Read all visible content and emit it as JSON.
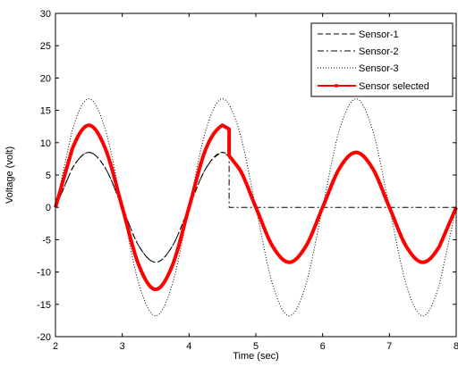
{
  "chart_data": {
    "type": "line",
    "title": "",
    "xlabel": "Time (sec)",
    "ylabel": "Voltage (volt)",
    "xlim": [
      2,
      8
    ],
    "ylim": [
      -20,
      30
    ],
    "xticks": [
      2,
      3,
      4,
      5,
      6,
      7,
      8
    ],
    "yticks": [
      -20,
      -15,
      -10,
      -5,
      0,
      5,
      10,
      15,
      20,
      25,
      30
    ],
    "grid": false,
    "legend_position": "top-right",
    "series": [
      {
        "name": "Sensor-1",
        "style": "dashed",
        "color": "#000000",
        "x": [
          2.0,
          2.25,
          2.5,
          2.75,
          3.0,
          3.25,
          3.5,
          3.75,
          4.0,
          4.25,
          4.5,
          4.75,
          5.0,
          5.25,
          5.5,
          5.75,
          6.0,
          6.25,
          6.5,
          6.75,
          7.0,
          7.25,
          7.5,
          7.75,
          8.0
        ],
        "y": [
          0,
          6.0,
          8.5,
          6.0,
          0,
          -6.0,
          -8.5,
          -6.0,
          0,
          6.0,
          8.5,
          6.0,
          0,
          -6.0,
          -8.5,
          -6.0,
          0,
          6.0,
          8.5,
          6.0,
          0,
          -6.0,
          -8.5,
          -6.0,
          0
        ]
      },
      {
        "name": "Sensor-2",
        "style": "dashdot",
        "color": "#000000",
        "x": [
          2.0,
          2.25,
          2.5,
          2.75,
          3.0,
          3.25,
          3.5,
          3.75,
          4.0,
          4.25,
          4.5,
          4.6,
          4.6,
          5.0,
          6.0,
          7.0,
          8.0
        ],
        "y": [
          0,
          6.0,
          8.5,
          6.0,
          0,
          -6.0,
          -8.5,
          -6.0,
          0,
          6.0,
          8.5,
          7.9,
          0,
          0,
          0,
          0,
          0
        ]
      },
      {
        "name": "Sensor-3",
        "style": "dotted",
        "color": "#000000",
        "x": [
          2.0,
          2.25,
          2.5,
          2.75,
          3.0,
          3.25,
          3.5,
          3.75,
          4.0,
          4.25,
          4.5,
          4.75,
          5.0,
          5.25,
          5.5,
          5.75,
          6.0,
          6.25,
          6.5,
          6.75,
          7.0,
          7.25,
          7.5,
          7.75,
          8.0
        ],
        "y": [
          0,
          11.9,
          16.8,
          11.9,
          0,
          -11.9,
          -16.8,
          -11.9,
          0,
          11.9,
          16.8,
          11.9,
          0,
          -11.9,
          -16.8,
          -11.9,
          0,
          11.9,
          16.8,
          11.9,
          0,
          -11.9,
          -16.8,
          -11.9,
          0
        ]
      },
      {
        "name": "Sensor selected",
        "style": "thick-solid-dots",
        "color": "#ff0000",
        "x": [
          2.0,
          2.25,
          2.5,
          2.75,
          3.0,
          3.25,
          3.5,
          3.75,
          4.0,
          4.25,
          4.5,
          4.6,
          4.6,
          4.75,
          5.0,
          5.25,
          5.5,
          5.75,
          6.0,
          6.25,
          6.5,
          6.75,
          7.0,
          7.25,
          7.5,
          7.75,
          8.0
        ],
        "y": [
          0,
          9.0,
          12.7,
          9.0,
          0,
          -9.0,
          -12.7,
          -9.0,
          0,
          9.0,
          12.7,
          12.1,
          8.0,
          6.0,
          0,
          -6.0,
          -8.5,
          -6.0,
          0,
          6.0,
          8.5,
          6.0,
          0,
          -6.0,
          -8.5,
          -6.0,
          0
        ]
      }
    ]
  }
}
